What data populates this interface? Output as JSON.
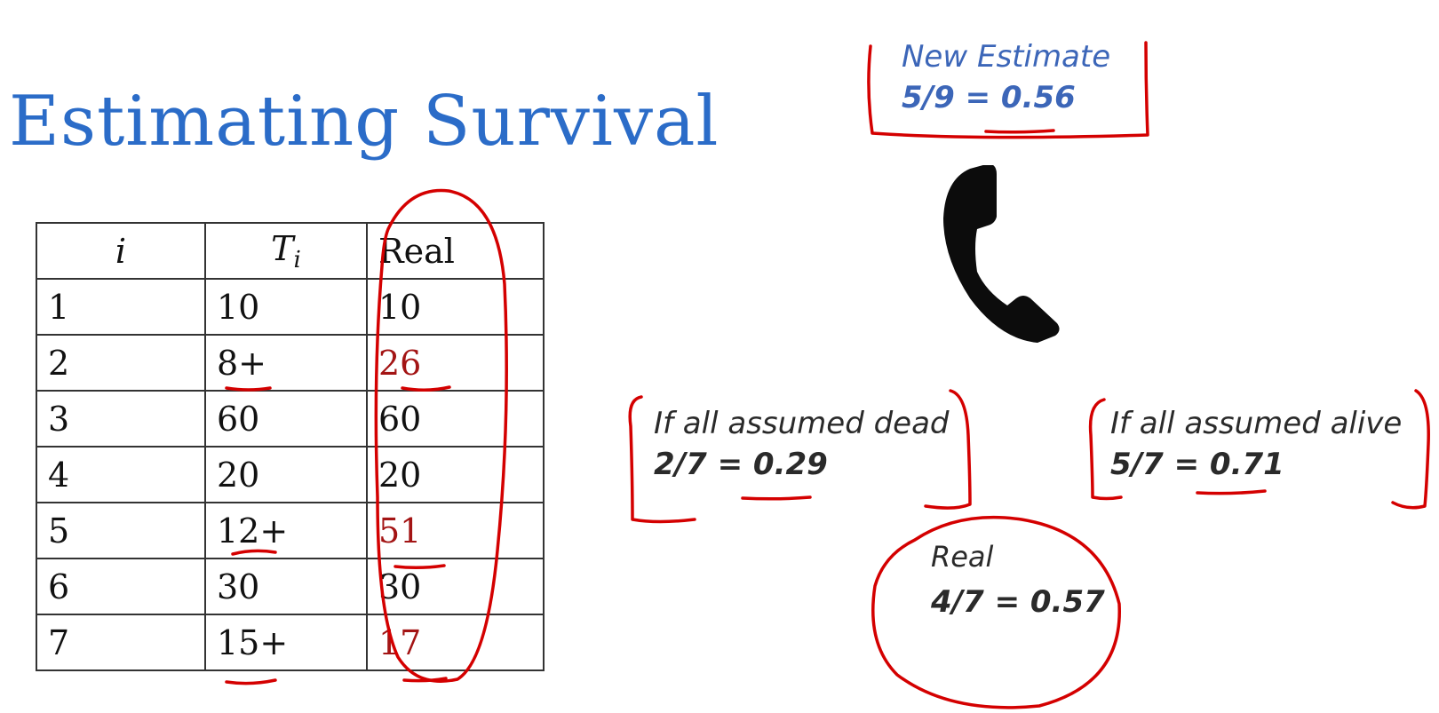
{
  "title": "Estimating Survival",
  "table": {
    "headers": {
      "i": "i",
      "t_base": "T",
      "t_sub": "i",
      "real": "Real"
    },
    "rows": [
      {
        "i": "1",
        "t": "10",
        "real": "10"
      },
      {
        "i": "2",
        "t": "8+",
        "real": "26"
      },
      {
        "i": "3",
        "t": "60",
        "real": "60"
      },
      {
        "i": "4",
        "t": "20",
        "real": "20"
      },
      {
        "i": "5",
        "t": "12+",
        "real": "51"
      },
      {
        "i": "6",
        "t": "30",
        "real": "30"
      },
      {
        "i": "7",
        "t": "15+",
        "real": "17"
      }
    ]
  },
  "new_estimate": {
    "label": "New Estimate",
    "formula": "5/9 = ",
    "value": "0.56"
  },
  "assumed_dead": {
    "label": "If all assumed dead",
    "formula": "2/7 = ",
    "value": "0.29"
  },
  "assumed_alive": {
    "label": "If all assumed alive",
    "formula": "5/7 = ",
    "value": "0.71"
  },
  "real_estimate": {
    "label": "Real",
    "formula": "4/7 = 0.57"
  },
  "phone_icon": "phone-icon",
  "colors": {
    "title": "#2b6cc8",
    "annotation_red": "#d40000",
    "censored_real_value": "#a31414",
    "new_estimate_text": "#3c66b8"
  }
}
